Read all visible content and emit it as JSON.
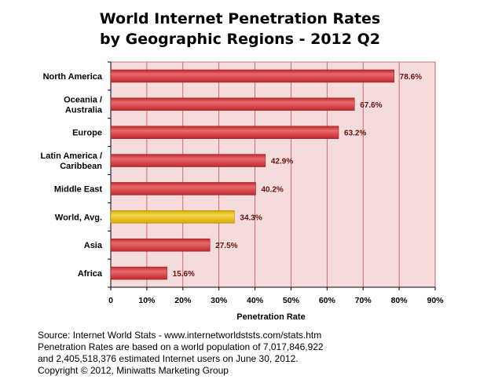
{
  "chart_data": {
    "type": "bar",
    "orientation": "horizontal",
    "title": "World Internet Penetration Rates",
    "subtitle": "by Geographic Regions - 2012 Q2",
    "xlabel": "Penetration Rate",
    "ylabel": "",
    "xlim": [
      0,
      90
    ],
    "xticks": [
      "0",
      "10%",
      "20%",
      "30%",
      "40%",
      "50%",
      "60%",
      "70%",
      "80%",
      "90%"
    ],
    "grid": true,
    "categories": [
      [
        "North America"
      ],
      [
        "Oceania  /",
        "Australia"
      ],
      [
        "Europe"
      ],
      [
        "Latin America /",
        "Caribbean"
      ],
      [
        "Middle East"
      ],
      [
        "World, Avg."
      ],
      [
        "Asia"
      ],
      [
        "Africa"
      ]
    ],
    "values": [
      78.6,
      67.6,
      63.2,
      42.9,
      40.2,
      34.3,
      27.5,
      15.6
    ],
    "value_labels": [
      "78.6%",
      "67.6%",
      "63.2%",
      "42.9%",
      "40.2%",
      "34.3%",
      "27.5%",
      "15.6%"
    ],
    "highlight_index": 5
  },
  "colors": {
    "bar": "#c0282b",
    "bar_light": "#e86a6c",
    "highlight": "#d8a800",
    "highlight_light": "#f3d64a",
    "plot_bg": "#f5dcdc",
    "grid": "#c05050",
    "value_label": "#6a1010"
  },
  "source": {
    "lines": [
      "Source: Internet World Stats - www.internetworldststs.com/stats.htm",
      "Penetration Rates are based on a world population of 7,017,846,922",
      "and 2,405,518,376 estimated Internet users on June 30, 2012.",
      "Copyright © 2012, Miniwatts Marketing Group"
    ]
  }
}
